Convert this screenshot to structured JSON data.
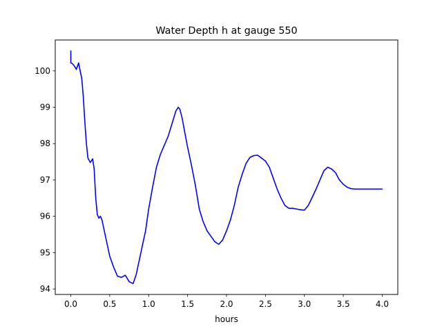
{
  "chart_data": {
    "type": "line",
    "title": "Water Depth h at gauge 550",
    "xlabel": "hours",
    "ylabel": "",
    "xlim": [
      -0.2,
      4.2
    ],
    "ylim": [
      93.85,
      100.85
    ],
    "grid": false,
    "xticks": [
      0.0,
      0.5,
      1.0,
      1.5,
      2.0,
      2.5,
      3.0,
      3.5,
      4.0
    ],
    "xtick_labels": [
      "0.0",
      "0.5",
      "1.0",
      "1.5",
      "2.0",
      "2.5",
      "3.0",
      "3.5",
      "4.0"
    ],
    "yticks": [
      94,
      95,
      96,
      97,
      98,
      99,
      100
    ],
    "ytick_labels": [
      "94",
      "95",
      "96",
      "97",
      "98",
      "99",
      "100"
    ],
    "series": [
      {
        "color": "#0000ff",
        "x": [
          0.0,
          0.0,
          0.02,
          0.05,
          0.07,
          0.1,
          0.12,
          0.14,
          0.16,
          0.18,
          0.2,
          0.22,
          0.25,
          0.28,
          0.3,
          0.32,
          0.34,
          0.36,
          0.38,
          0.4,
          0.42,
          0.45,
          0.48,
          0.5,
          0.55,
          0.6,
          0.65,
          0.7,
          0.75,
          0.8,
          0.84,
          0.88,
          0.92,
          0.96,
          1.0,
          1.05,
          1.1,
          1.15,
          1.2,
          1.25,
          1.3,
          1.35,
          1.38,
          1.4,
          1.43,
          1.46,
          1.5,
          1.55,
          1.6,
          1.65,
          1.7,
          1.75,
          1.8,
          1.85,
          1.9,
          1.95,
          2.0,
          2.05,
          2.1,
          2.15,
          2.2,
          2.25,
          2.3,
          2.35,
          2.4,
          2.45,
          2.5,
          2.55,
          2.6,
          2.65,
          2.7,
          2.75,
          2.8,
          2.85,
          2.9,
          2.95,
          3.0,
          3.05,
          3.1,
          3.15,
          3.2,
          3.25,
          3.3,
          3.35,
          3.4,
          3.45,
          3.5,
          3.55,
          3.6,
          3.65,
          3.7,
          3.75,
          3.8,
          3.85,
          3.9,
          3.95,
          4.0
        ],
        "y": [
          100.55,
          100.22,
          100.2,
          100.12,
          100.04,
          100.22,
          100.0,
          99.8,
          99.3,
          98.6,
          98.0,
          97.6,
          97.48,
          97.58,
          97.3,
          96.5,
          96.05,
          95.95,
          96.0,
          95.9,
          95.7,
          95.4,
          95.1,
          94.9,
          94.6,
          94.35,
          94.32,
          94.38,
          94.2,
          94.15,
          94.4,
          94.8,
          95.2,
          95.6,
          96.2,
          96.8,
          97.35,
          97.7,
          97.95,
          98.2,
          98.55,
          98.9,
          99.0,
          98.95,
          98.7,
          98.35,
          97.9,
          97.4,
          96.85,
          96.2,
          95.85,
          95.6,
          95.45,
          95.3,
          95.23,
          95.35,
          95.6,
          95.9,
          96.3,
          96.8,
          97.15,
          97.45,
          97.62,
          97.67,
          97.68,
          97.6,
          97.52,
          97.35,
          97.05,
          96.75,
          96.5,
          96.3,
          96.22,
          96.22,
          96.2,
          96.18,
          96.17,
          96.3,
          96.52,
          96.75,
          97.0,
          97.25,
          97.35,
          97.3,
          97.2,
          97.0,
          96.88,
          96.8,
          96.76,
          96.75,
          96.75,
          96.75,
          96.75,
          96.75,
          96.75,
          96.75,
          96.75
        ]
      }
    ]
  }
}
